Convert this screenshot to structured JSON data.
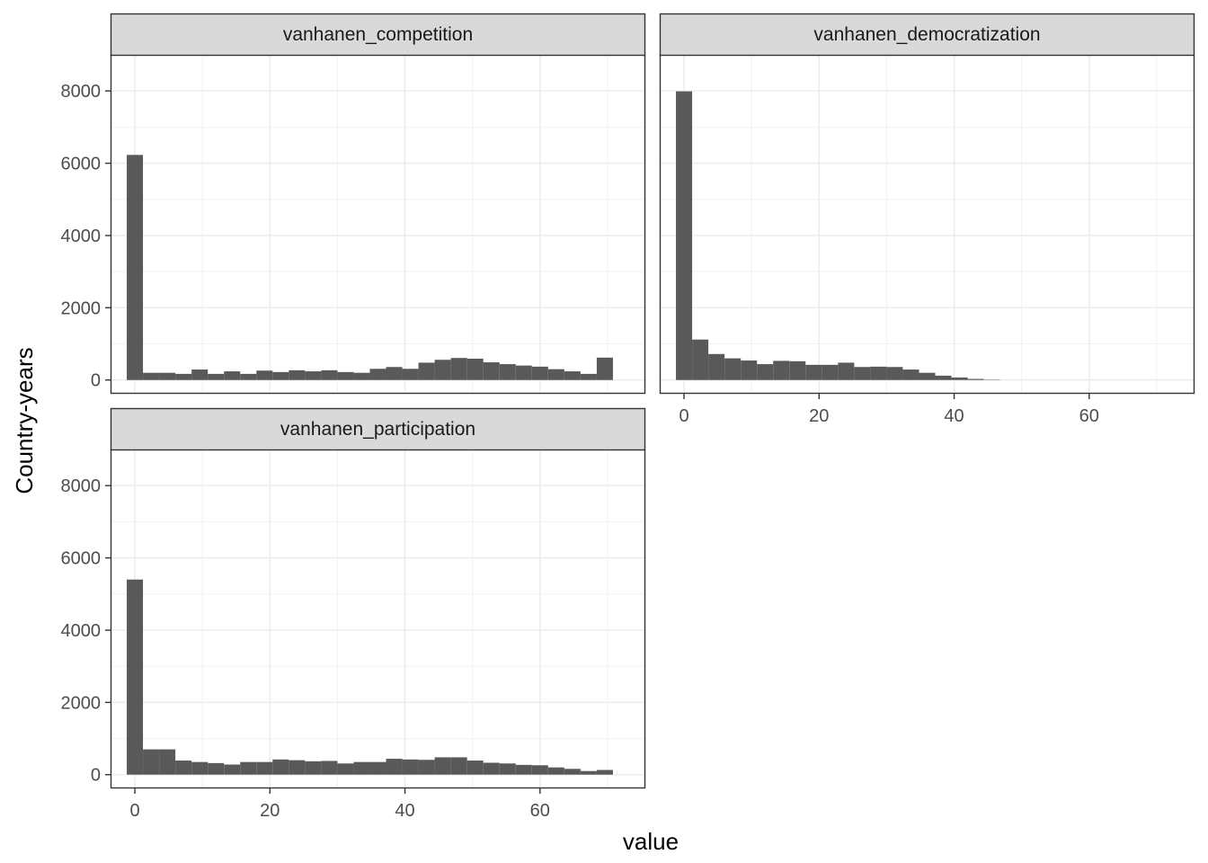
{
  "chart_data": {
    "type": "bar",
    "subtype": "faceted-histogram",
    "xlabel": "value",
    "ylabel": "Country-years",
    "xlim": [
      -3.6,
      75.6
    ],
    "ylim": [
      -380,
      9000
    ],
    "x_ticks": [
      0,
      20,
      40,
      60
    ],
    "y_ticks": [
      0,
      2000,
      4000,
      6000,
      8000
    ],
    "grid": true,
    "bar_color": "#595959",
    "binwidth": 2.4,
    "facets": [
      {
        "name": "vanhanen_competition",
        "bin_start": -1.2,
        "counts": [
          6230,
          200,
          200,
          170,
          290,
          170,
          240,
          170,
          260,
          220,
          270,
          240,
          270,
          220,
          200,
          310,
          360,
          310,
          480,
          560,
          610,
          590,
          490,
          440,
          400,
          370,
          300,
          240,
          170,
          620
        ]
      },
      {
        "name": "vanhanen_democratization",
        "bin_start": -1.2,
        "counts": [
          7990,
          1120,
          720,
          600,
          540,
          440,
          530,
          520,
          420,
          420,
          480,
          360,
          370,
          360,
          290,
          200,
          120,
          70,
          30,
          10
        ]
      },
      {
        "name": "vanhanen_participation",
        "bin_start": -1.2,
        "counts": [
          5400,
          700,
          700,
          390,
          350,
          320,
          280,
          350,
          350,
          420,
          400,
          370,
          380,
          310,
          350,
          350,
          440,
          420,
          410,
          480,
          480,
          390,
          330,
          310,
          270,
          260,
          200,
          160,
          100,
          130
        ]
      }
    ]
  }
}
